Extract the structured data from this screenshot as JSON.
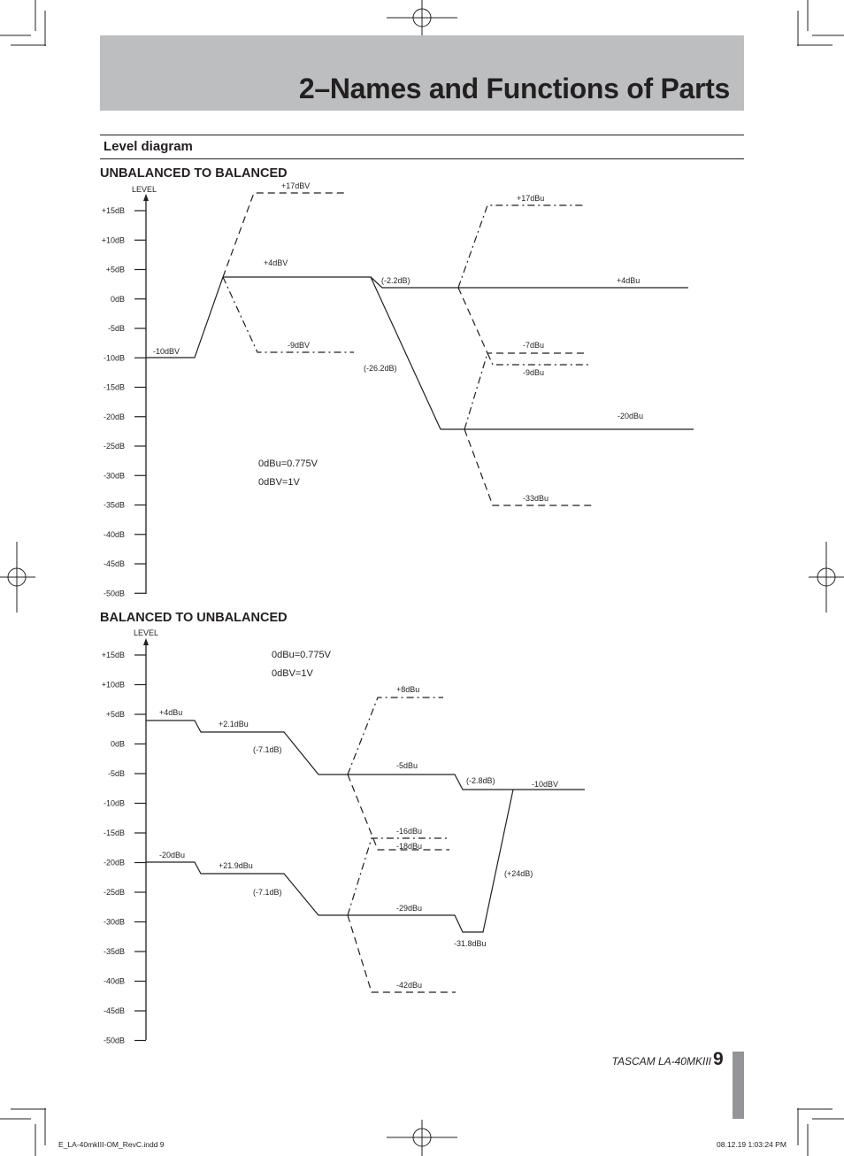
{
  "page": {
    "title": "2–Names and Functions of Parts",
    "section": "Level diagram",
    "footer_model": "TASCAM LA-40MKIII",
    "page_number": "9",
    "print_file": "E_LA-40mkIII-OM_RevC.indd   9",
    "print_date": "08.12.19   1:03:24 PM"
  },
  "unbalanced_to_balanced": {
    "heading": "UNBALANCED TO BALANCED",
    "axis_label": "LEVEL",
    "ticks": [
      "+15dB",
      "+10dB",
      "+5dB",
      "0dB",
      "-5dB",
      "-10dB",
      "-15dB",
      "-20dB",
      "-25dB",
      "-30dB",
      "-35dB",
      "-40dB",
      "-45dB",
      "-50dB"
    ],
    "notes": [
      "0dBu=0.775V",
      "0dBV=1V"
    ],
    "labels": {
      "in_level": "-10dBV",
      "plus17dbv": "+17dBV",
      "plus4dbv": "+4dBV",
      "minus9dbv": "-9dBV",
      "gain_a": "(-2.2dB)",
      "gain_b": "(-26.2dB)",
      "plus17dbu": "+17dBu",
      "plus4dbu": "+4dBu",
      "minus7dbu": "-7dBu",
      "minus9dbu": "-9dBu",
      "minus20dbu": "-20dBu",
      "minus33dbu": "-33dBu"
    }
  },
  "balanced_to_unbalanced": {
    "heading": "BALANCED TO UNBALANCED",
    "axis_label": "LEVEL",
    "ticks": [
      "+15dB",
      "+10dB",
      "+5dB",
      "0dB",
      "-5dB",
      "-10dB",
      "-15dB",
      "-20dB",
      "-25dB",
      "-30dB",
      "-35dB",
      "-40dB",
      "-45dB",
      "-50dB"
    ],
    "notes": [
      "0dBu=0.775V",
      "0dBV=1V"
    ],
    "labels": {
      "plus4dbu": "+4dBu",
      "plus2_1dbu": "+2.1dBu",
      "gain_a": "(-7.1dB)",
      "plus8dbu": "+8dBu",
      "minus5dbu": "-5dBu",
      "gain_b": "(-2.8dB)",
      "minus10dbv": "-10dBV",
      "minus16dbu": "-16dBu",
      "minus18dbu": "-18dBu",
      "minus20dbu": "-20dBu",
      "plus21_9dbu": "+21.9dBu",
      "gain_c": "(-7.1dB)",
      "gain_d": "(+24dB)",
      "minus29dbu": "-29dBu",
      "minus31_8dbu": "-31.8dBu",
      "minus42dbu": "-42dBu"
    }
  }
}
